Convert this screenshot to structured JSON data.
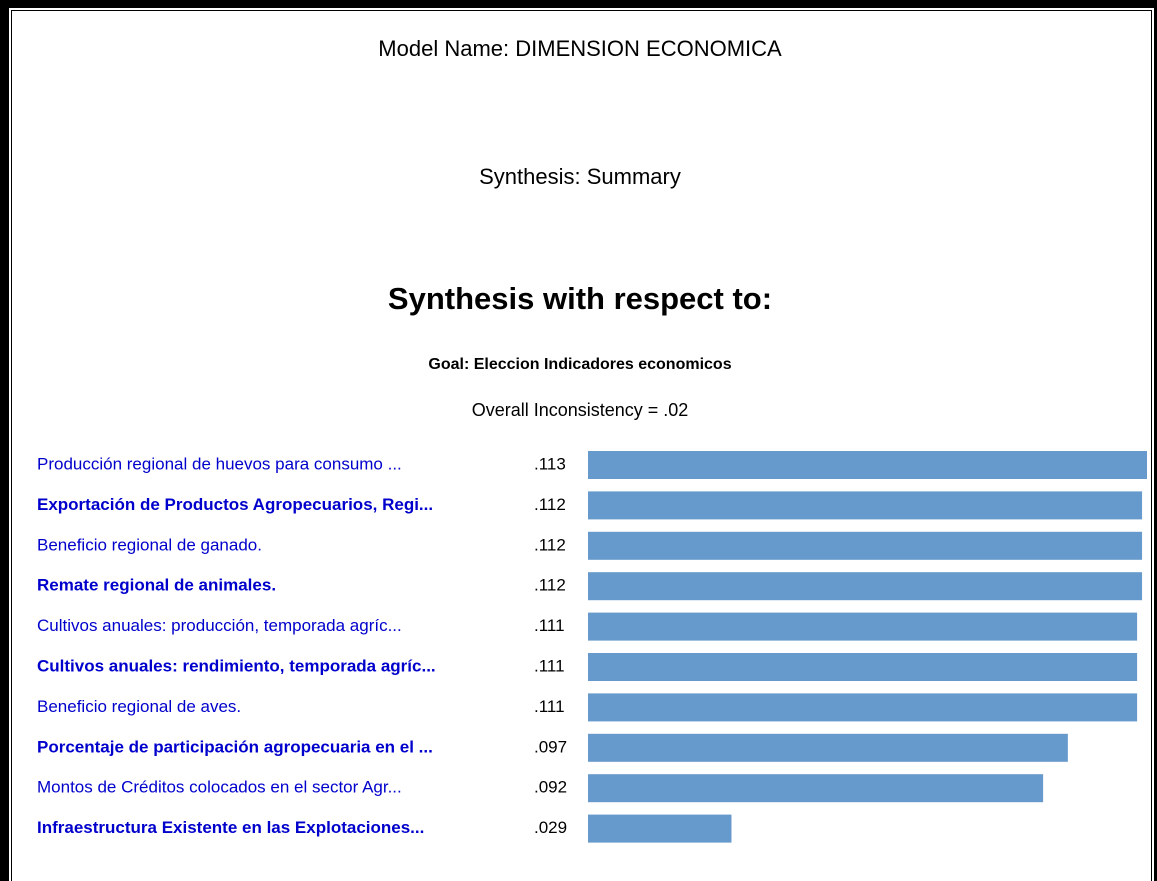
{
  "chart_data": {
    "type": "bar",
    "title": "Model Name: DIMENSION ECONOMICA",
    "subtitle": "Synthesis: Summary",
    "heading": "Synthesis with respect to:",
    "goal": "Goal: Eleccion Indicadores economicos",
    "annotation": "Overall Inconsistency = .02",
    "orientation": "horizontal",
    "color": "#6699cc",
    "categories": [
      "Producción regional de huevos para consumo ...",
      "Exportación de Productos Agropecuarios, Regi...",
      "Beneficio regional de ganado.",
      "Remate regional de animales.",
      "Cultivos anuales: producción, temporada agríc...",
      "Cultivos anuales: rendimiento, temporada agríc...",
      "Beneficio regional de aves.",
      "Porcentaje de participación agropecuaria en el ...",
      "Montos de Créditos colocados en el sector Agr...",
      "Infraestructura Existente en las Explotaciones..."
    ],
    "values": [
      0.113,
      0.112,
      0.112,
      0.112,
      0.111,
      0.111,
      0.111,
      0.097,
      0.092,
      0.029
    ],
    "value_labels": [
      ".113",
      ".112",
      ".112",
      ".112",
      ".111",
      ".111",
      ".111",
      ".097",
      ".092",
      ".029"
    ]
  }
}
